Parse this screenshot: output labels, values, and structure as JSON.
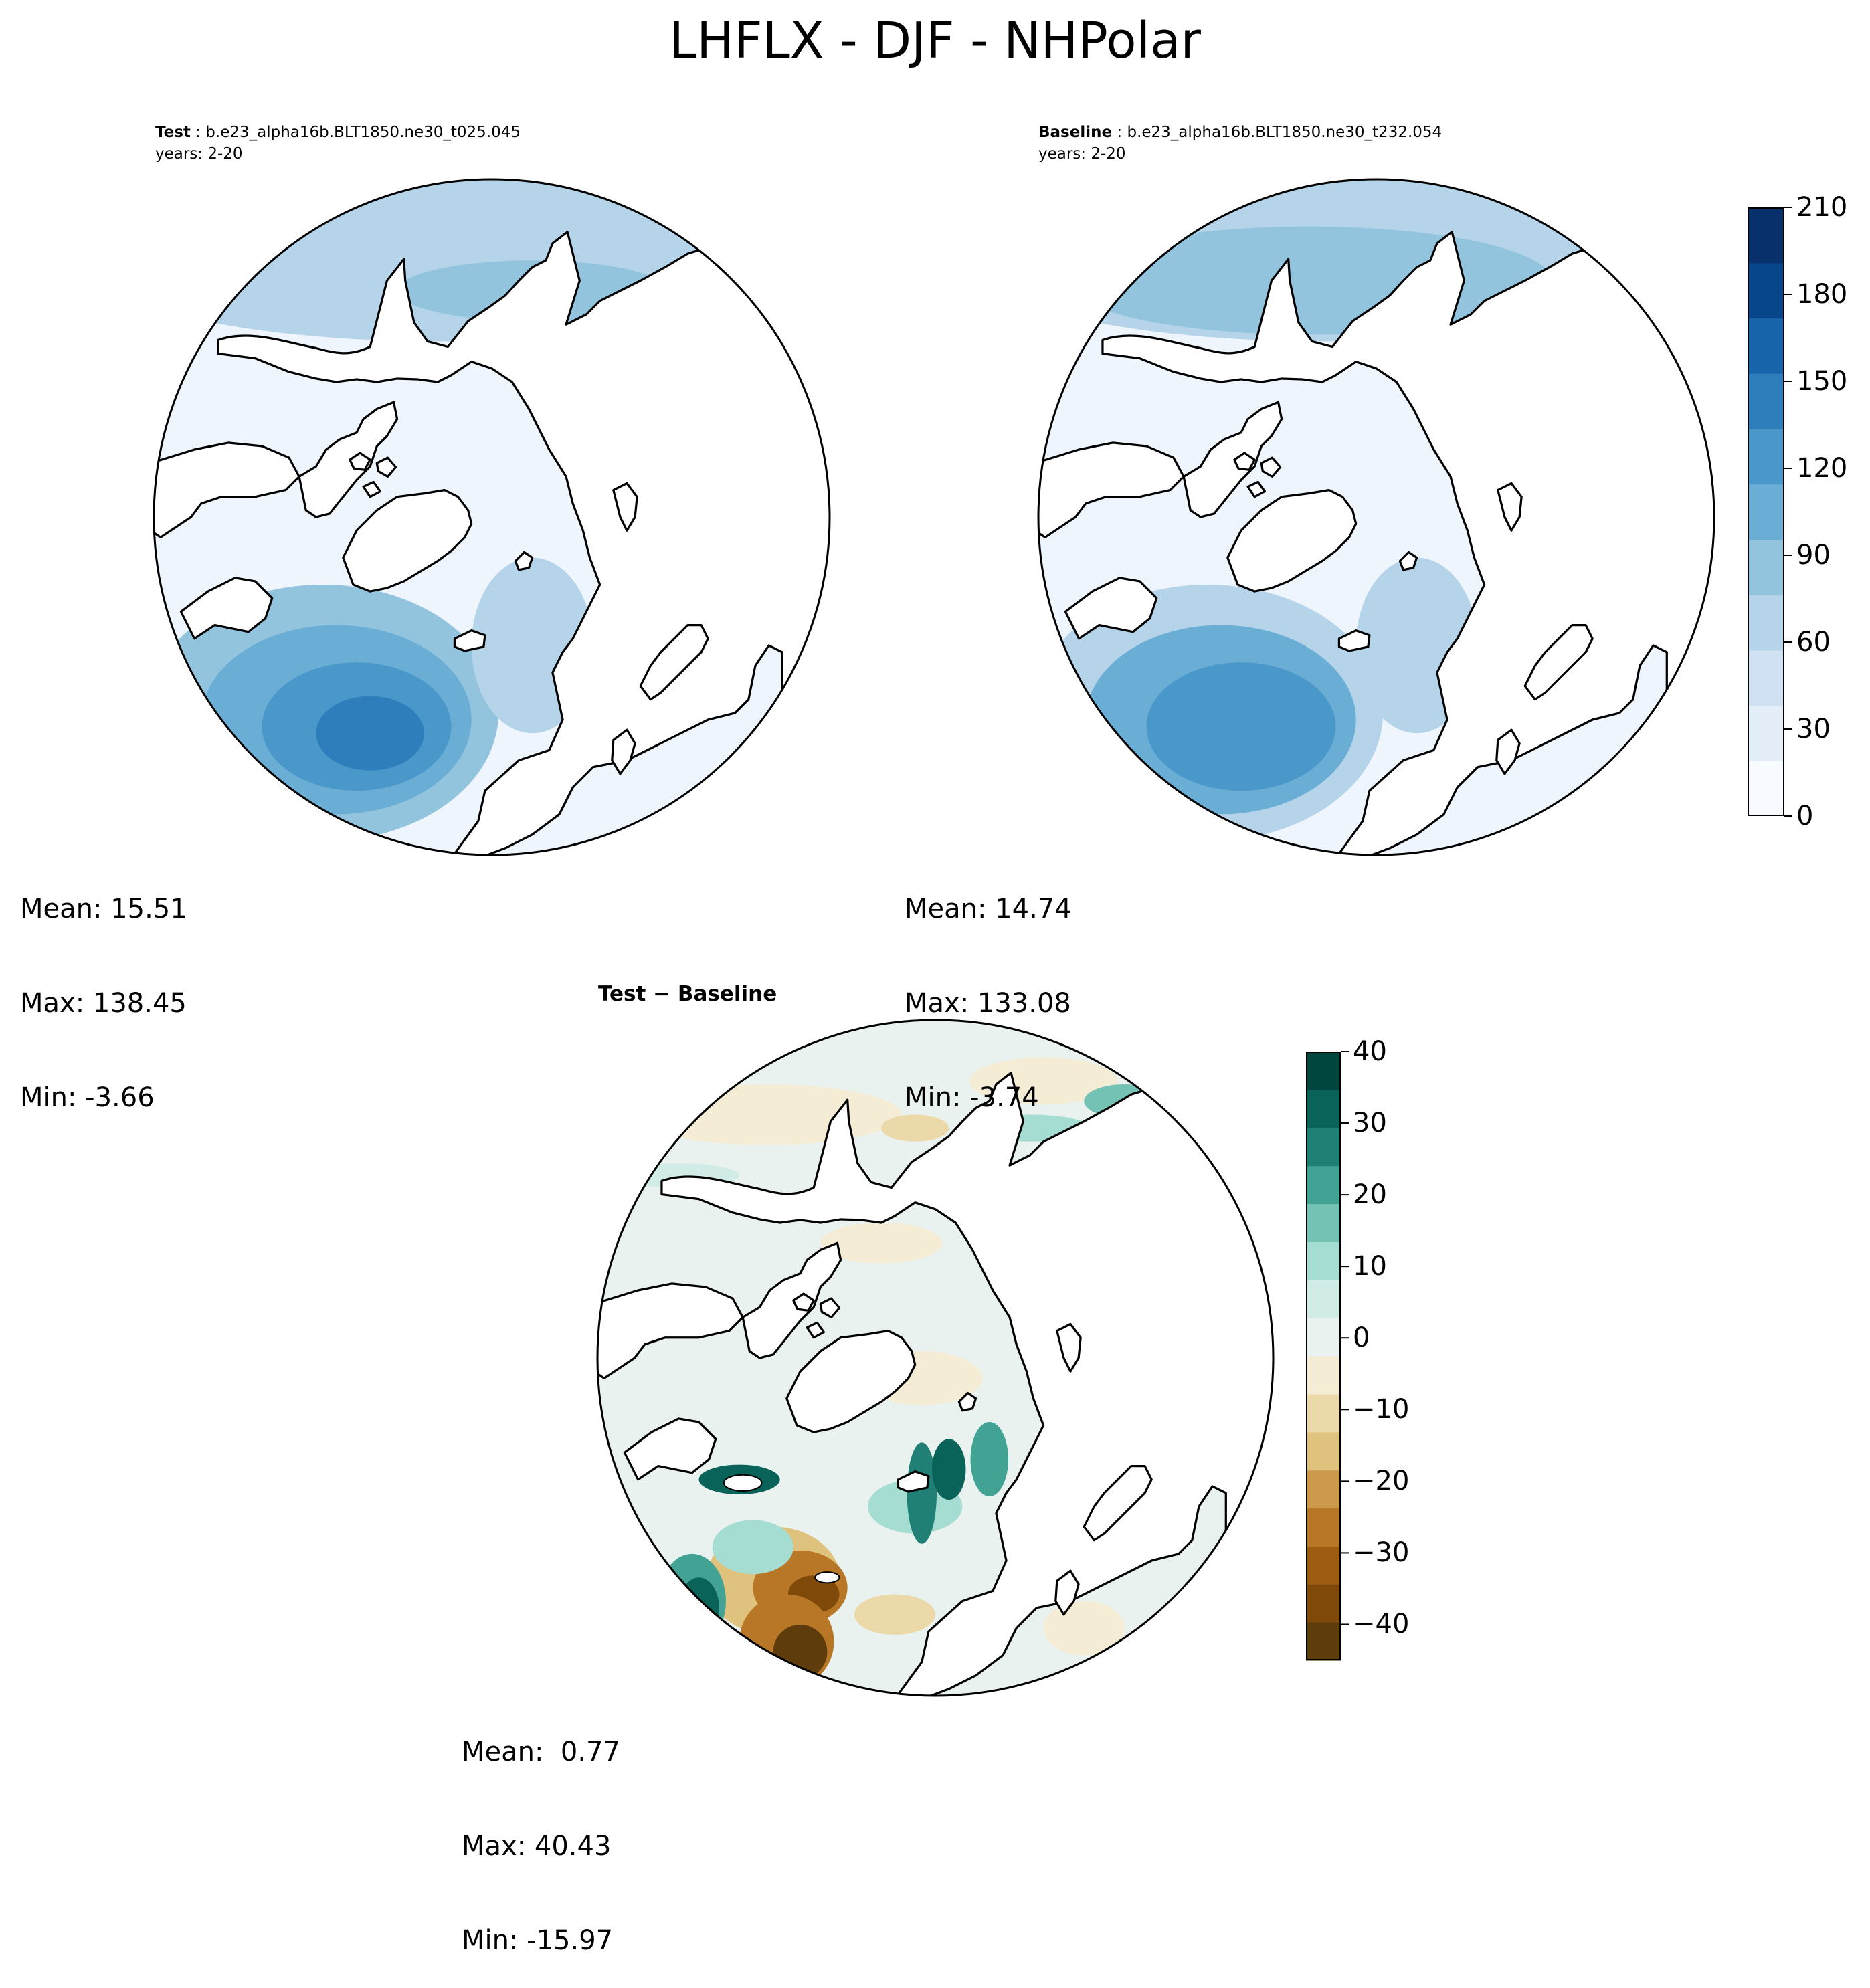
{
  "title": "LHFLX - DJF - NHPolar",
  "panels": [
    {
      "id": "test",
      "label": "Test",
      "case": "b.e23_alpha16b.BLT1850.ne30_t025.045",
      "years": "years: 2-20",
      "stats": [
        "Mean: 15.51",
        "Max: 138.45",
        "Min: -3.66"
      ],
      "field": {
        "atlantic_peak": 138.45,
        "pacific": 55,
        "background": 10
      }
    },
    {
      "id": "baseline",
      "label": "Baseline",
      "case": "b.e23_alpha16b.BLT1850.ne30_t232.054",
      "years": "years: 2-20",
      "stats": [
        "Mean: 14.74",
        "Max: 133.08",
        "Min: -3.74"
      ],
      "field": {
        "atlantic_peak": 133.08,
        "pacific": 60,
        "background": 10
      }
    }
  ],
  "diff": {
    "title": "Test − Baseline",
    "stats": [
      "Mean:  0.77",
      "Max: 40.43",
      "Min: -15.97"
    ]
  },
  "colorbar_main": {
    "colormap": "Blues",
    "colors": [
      "#f7fbff",
      "#e3eef9",
      "#cfe1f2",
      "#b5d4e9",
      "#93c4de",
      "#6aaed6",
      "#4a98c9",
      "#2e7ebc",
      "#1764ab",
      "#08468b",
      "#08306b"
    ],
    "ticks": [
      "0",
      "30",
      "60",
      "90",
      "120",
      "150",
      "180",
      "210"
    ]
  },
  "colorbar_diff": {
    "colormap": "BrBG",
    "colors": [
      "#5e3c0c",
      "#7f4a09",
      "#9c5c12",
      "#b77727",
      "#cc9a4d",
      "#dfc27d",
      "#ecd9a9",
      "#f5ecd6",
      "#e9f2ef",
      "#d1ece6",
      "#a6ddd2",
      "#74c2b3",
      "#42a293",
      "#208075",
      "#0a6358",
      "#00463e"
    ],
    "ticks": [
      "40",
      "30",
      "20",
      "10",
      "0",
      "−10",
      "−20",
      "−30",
      "−40"
    ]
  }
}
